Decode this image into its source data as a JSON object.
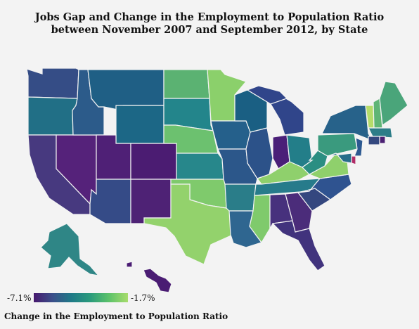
{
  "title_line1": "Jobs Gap and Change in the Employment to Population Ratio",
  "title_line2": "between November 2007 and September 2012, by State",
  "legend": {
    "min_label": "-7.1%",
    "max_label": "-1.7%",
    "caption": "Change in the Employment to Population Ratio",
    "colors": [
      "#47186e",
      "#3b4f8a",
      "#1f7a87",
      "#2a9b7c",
      "#5cc26a",
      "#a8dc6c"
    ]
  },
  "state_colors": {
    "WA": "#354d86",
    "OR": "#216f86",
    "ID": "#2c5b8a",
    "MT": "#1f5f85",
    "WY": "#1c6786",
    "ND": "#5bb272",
    "SD": "#23858b",
    "NE": "#6cc16f",
    "KS": "#27878b",
    "MN": "#8bd06b",
    "CA": "#47397f",
    "NV": "#55227a",
    "UT": "#4f2076",
    "CO": "#4b1c72",
    "AZ": "#354b87",
    "NM": "#4e2275",
    "TX": "#93d26c",
    "OK": "#7fca6c",
    "IA": "#25608b",
    "MO": "#2c578a",
    "AR": "#2a7d89",
    "LA": "#2f6690",
    "WI": "#1a5f83",
    "IL": "#2c5289",
    "MI": "#30458a",
    "IN": "#4a1f78",
    "OH": "#237e89",
    "KY": "#8fd06c",
    "TN": "#277b8b",
    "MS": "#7fca6c",
    "AL": "#47317d",
    "GA": "#4b2c7a",
    "FL": "#41337d",
    "SC": "#34477f",
    "NC": "#2f5390",
    "VA": "#8fd06c",
    "WV": "#2b8e82",
    "PA": "#3a9a7e",
    "NY": "#27628a",
    "VT": "#b5dc6a",
    "NH": "#5fb575",
    "ME": "#4aa57a",
    "MA": "#2d7d88",
    "CT": "#34487f",
    "RI": "#4b2073",
    "NJ": "#2b5890",
    "DE": "#b02b66",
    "MD": "#276d8a",
    "AK": "#2f8686",
    "HI": "#4a1c73"
  }
}
